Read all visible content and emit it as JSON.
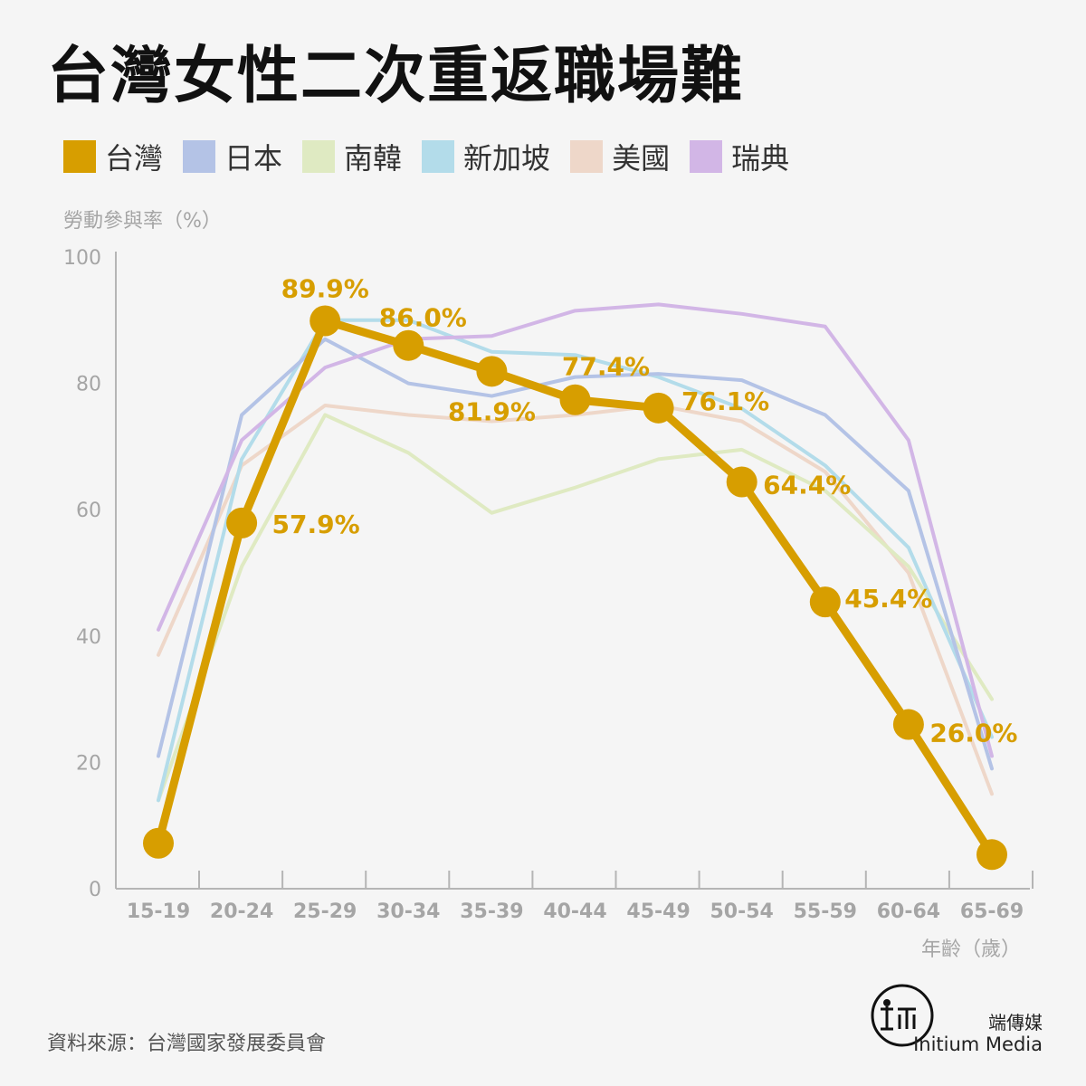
{
  "title": "台灣女性二次重返職場難",
  "legend": [
    {
      "label": "台灣",
      "color": "#d79e00"
    },
    {
      "label": "日本",
      "color": "#b4c3e6"
    },
    {
      "label": "南韓",
      "color": "#dfeac2"
    },
    {
      "label": "新加坡",
      "color": "#b3dcea"
    },
    {
      "label": "美國",
      "color": "#eed7c9"
    },
    {
      "label": "瑞典",
      "color": "#d2b6e6"
    }
  ],
  "source": "資料來源：台灣國家發展委員會",
  "brand": {
    "cn": "端傳媒",
    "en": "Initium Media"
  },
  "chart_data": {
    "type": "line",
    "ylabel": "勞動參與率（%）",
    "xlabel": "年齡（歲）",
    "ylim": [
      0,
      100
    ],
    "yticks": [
      "100",
      "80",
      "60",
      "40",
      "20",
      "0"
    ],
    "categories": [
      "15-19",
      "20-24",
      "25-29",
      "30-34",
      "35-39",
      "40-44",
      "45-49",
      "50-54",
      "55-59",
      "60-64",
      "65-69"
    ],
    "series": [
      {
        "name": "美國",
        "color": "#eed7c9",
        "values": [
          37,
          67,
          76.5,
          75,
          74,
          75,
          76.5,
          74,
          66,
          50,
          15
        ]
      },
      {
        "name": "南韓",
        "color": "#dfeac2",
        "values": [
          14,
          51,
          75,
          69,
          59.5,
          63.5,
          68,
          69.5,
          63,
          51,
          30
        ]
      },
      {
        "name": "新加坡",
        "color": "#b3dcea",
        "values": [
          14,
          68,
          90,
          90,
          85,
          84.5,
          81,
          76,
          67,
          54,
          24
        ]
      },
      {
        "name": "日本",
        "color": "#b4c3e6",
        "values": [
          21,
          75,
          87,
          80,
          78,
          81,
          81.5,
          80.5,
          75,
          63,
          19
        ]
      },
      {
        "name": "瑞典",
        "color": "#d2b6e6",
        "values": [
          41,
          71,
          82.5,
          87,
          87.5,
          91.5,
          92.5,
          91,
          89,
          71,
          21
        ]
      },
      {
        "name": "台灣",
        "color": "#d79e00",
        "values": [
          7.2,
          57.9,
          89.9,
          86.0,
          81.9,
          77.4,
          76.1,
          64.4,
          45.4,
          26.0,
          5.4
        ],
        "labels": [
          "",
          "57.9%",
          "89.9%",
          "86.0%",
          "81.9%",
          "77.4%",
          "76.1%",
          "64.4%",
          "45.4%",
          "26.0%",
          ""
        ]
      }
    ]
  }
}
